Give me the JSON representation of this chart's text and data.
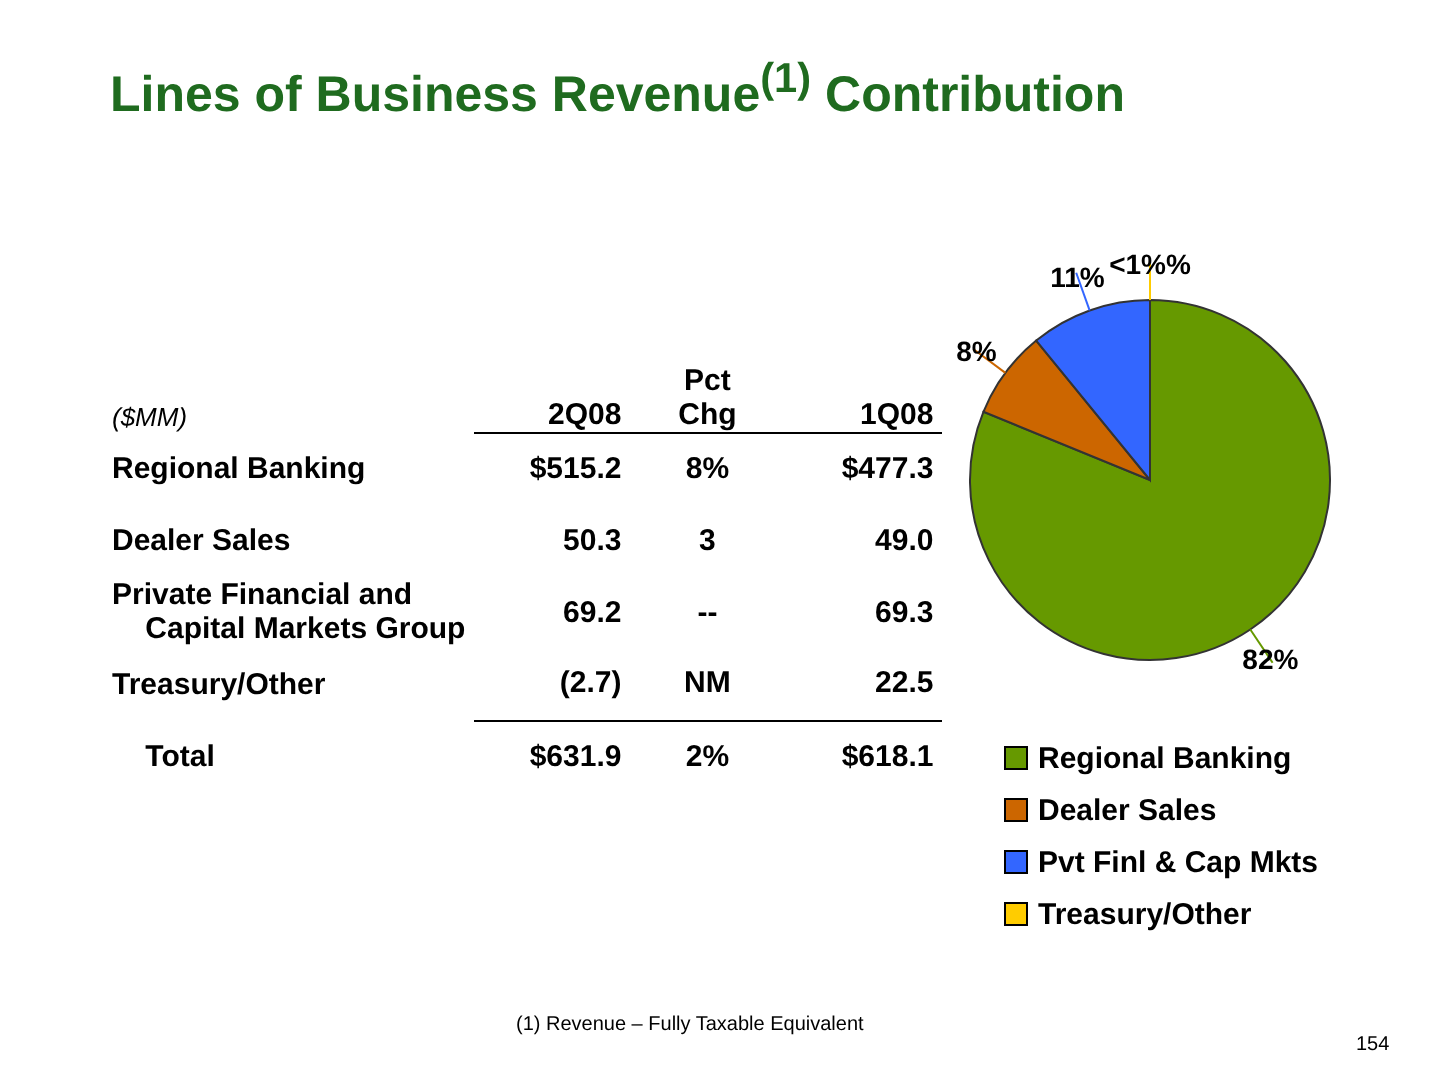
{
  "chart_data": [
    {
      "type": "other",
      "title": "Lines of Business Revenue$^{(1)}$ Contribution",
      "annotations": [
        "($MM)",
        "2Q08",
        "Pct\nChg",
        "1Q08",
        "Regional Banking",
        "$515.2",
        "8%",
        "$477.3",
        "Dealer Sales",
        "50.3",
        "3",
        "49.0",
        "Private Financial and\n    Capital Markets Group",
        "69.2",
        "--",
        "69.3",
        "Treasury/Other",
        "(2.7)",
        "NM",
        "22.5",
        "    Total",
        "$631.9",
        "2%",
        "$618.1",
        "(1)  Revenue – Fully Taxable Equivalent",
        "154"
      ]
    },
    {
      "type": "pie",
      "categories": [
        "Regional Banking",
        "Dealer Sales",
        "Pvt Finl & Cap Mkts",
        "Treasury/Other"
      ],
      "values": [
        82,
        8,
        11,
        0
      ],
      "value_labels": [
        "82%",
        "8%",
        "11%",
        "<1%%"
      ],
      "colors": [
        "#669900",
        "#cc6600",
        "#3366ff",
        "#ffcc00"
      ],
      "legend": "bottom"
    }
  ]
}
